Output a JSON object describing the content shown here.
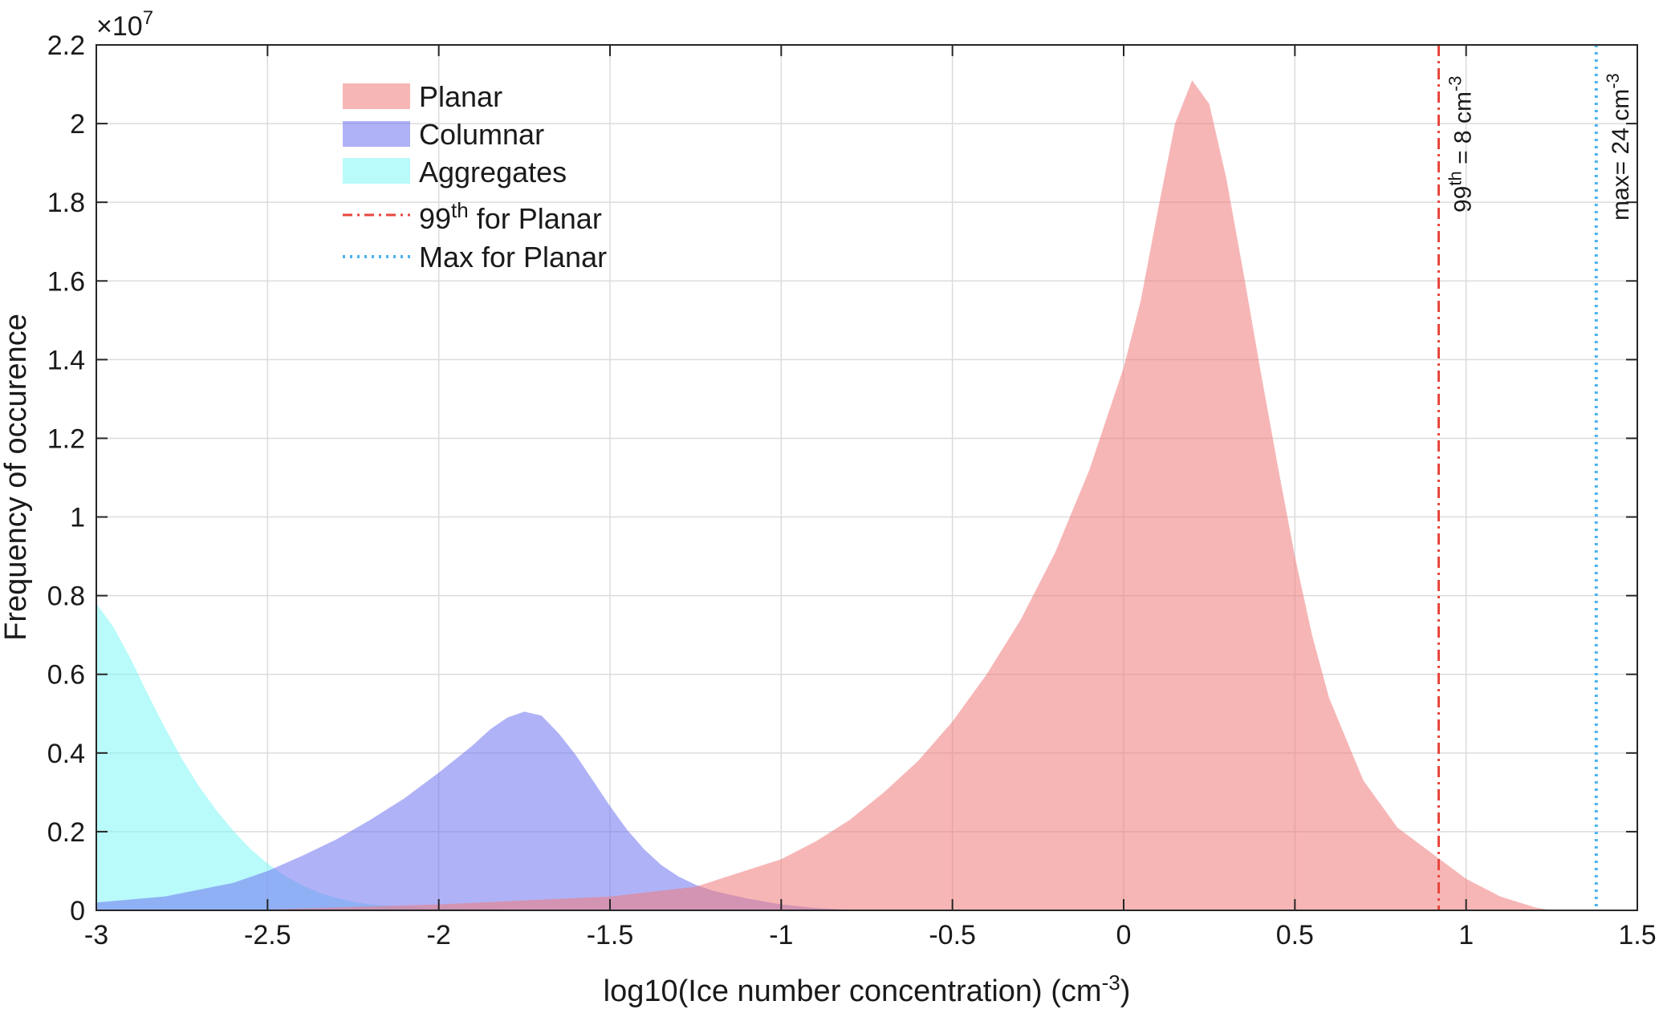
{
  "chart_data": {
    "type": "area",
    "title": "",
    "xlabel": "log10(Ice number concentration) (cm",
    "xlabel_sup": "-3",
    "xlabel_tail": ")",
    "ylabel": "Frequency of occurence",
    "y_exponent_base": "×10",
    "y_exponent_power": "7",
    "xlim": [
      -3,
      1.5
    ],
    "ylim": [
      0,
      22000000
    ],
    "grid": true,
    "legend_position": "top-left",
    "x_ticks": [
      -3,
      -2.5,
      -2,
      -1.5,
      -1,
      -0.5,
      0,
      0.5,
      1,
      1.5
    ],
    "x_tick_labels": [
      "-3",
      "-2.5",
      "-2",
      "-1.5",
      "-1",
      "-0.5",
      "0",
      "0.5",
      "1",
      "1.5"
    ],
    "y_ticks": [
      0,
      2000000,
      4000000,
      6000000,
      8000000,
      10000000,
      12000000,
      14000000,
      16000000,
      18000000,
      20000000,
      22000000
    ],
    "y_tick_labels": [
      "0",
      "0.2",
      "0.4",
      "0.6",
      "0.8",
      "1",
      "1.2",
      "1.4",
      "1.6",
      "1.8",
      "2",
      "2.2"
    ],
    "series": [
      {
        "name": "Aggregates",
        "color": "#80f5f5",
        "x": [
          -3.0,
          -2.95,
          -2.9,
          -2.85,
          -2.8,
          -2.75,
          -2.7,
          -2.65,
          -2.6,
          -2.55,
          -2.5,
          -2.45,
          -2.4,
          -2.35,
          -2.3,
          -2.25,
          -2.2,
          -2.1,
          -2.0,
          -1.9,
          -1.8,
          -1.6,
          -1.4,
          -1.2,
          -1.0
        ],
        "values": [
          7800000,
          7200000,
          6400000,
          5500000,
          4650000,
          3850000,
          3150000,
          2550000,
          2020000,
          1560000,
          1190000,
          880000,
          640000,
          450000,
          320000,
          220000,
          150000,
          90000,
          60000,
          40000,
          25000,
          12000,
          6000,
          3000,
          0
        ]
      },
      {
        "name": "Columnar",
        "color": "#6f73f0",
        "x": [
          -3.0,
          -2.8,
          -2.6,
          -2.5,
          -2.4,
          -2.3,
          -2.2,
          -2.1,
          -2.0,
          -1.95,
          -1.9,
          -1.85,
          -1.8,
          -1.75,
          -1.7,
          -1.65,
          -1.6,
          -1.55,
          -1.5,
          -1.45,
          -1.4,
          -1.35,
          -1.3,
          -1.25,
          -1.2,
          -1.1,
          -1.0,
          -0.9,
          -0.8,
          -0.75
        ],
        "values": [
          200000,
          350000,
          700000,
          1000000,
          1380000,
          1800000,
          2300000,
          2850000,
          3500000,
          3850000,
          4200000,
          4600000,
          4900000,
          5050000,
          4950000,
          4500000,
          3950000,
          3300000,
          2650000,
          2050000,
          1550000,
          1150000,
          860000,
          650000,
          500000,
          300000,
          150000,
          60000,
          15000,
          0
        ]
      },
      {
        "name": "Planar",
        "color": "#f07a7a",
        "x": [
          -2.5,
          -2.0,
          -1.5,
          -1.25,
          -1.0,
          -0.9,
          -0.8,
          -0.7,
          -0.6,
          -0.5,
          -0.4,
          -0.3,
          -0.2,
          -0.1,
          0.0,
          0.05,
          0.1,
          0.15,
          0.2,
          0.25,
          0.3,
          0.35,
          0.4,
          0.45,
          0.5,
          0.55,
          0.6,
          0.7,
          0.8,
          0.9,
          1.0,
          1.1,
          1.2,
          1.25
        ],
        "values": [
          20000,
          150000,
          350000,
          600000,
          1300000,
          1750000,
          2300000,
          3000000,
          3800000,
          4800000,
          6000000,
          7400000,
          9100000,
          11200000,
          13800000,
          15500000,
          17800000,
          20000000,
          21100000,
          20500000,
          18600000,
          16200000,
          13700000,
          11300000,
          9000000,
          7000000,
          5400000,
          3300000,
          2100000,
          1450000,
          800000,
          350000,
          80000,
          0
        ]
      }
    ],
    "reference_lines": [
      {
        "name": "99",
        "name_sup": "th",
        "name_tail": " for Planar",
        "x": 0.92,
        "color": "#e8463c",
        "style": "dash-dot",
        "annotation": "99",
        "annotation_sup": "th",
        "annotation_tail": " = 8 cm",
        "annotation_sup2": "-3"
      },
      {
        "name": "Max for Planar",
        "x": 1.38,
        "color": "#4db3ef",
        "style": "dotted",
        "annotation": "max= 24 cm",
        "annotation_sup": "-3"
      }
    ]
  }
}
